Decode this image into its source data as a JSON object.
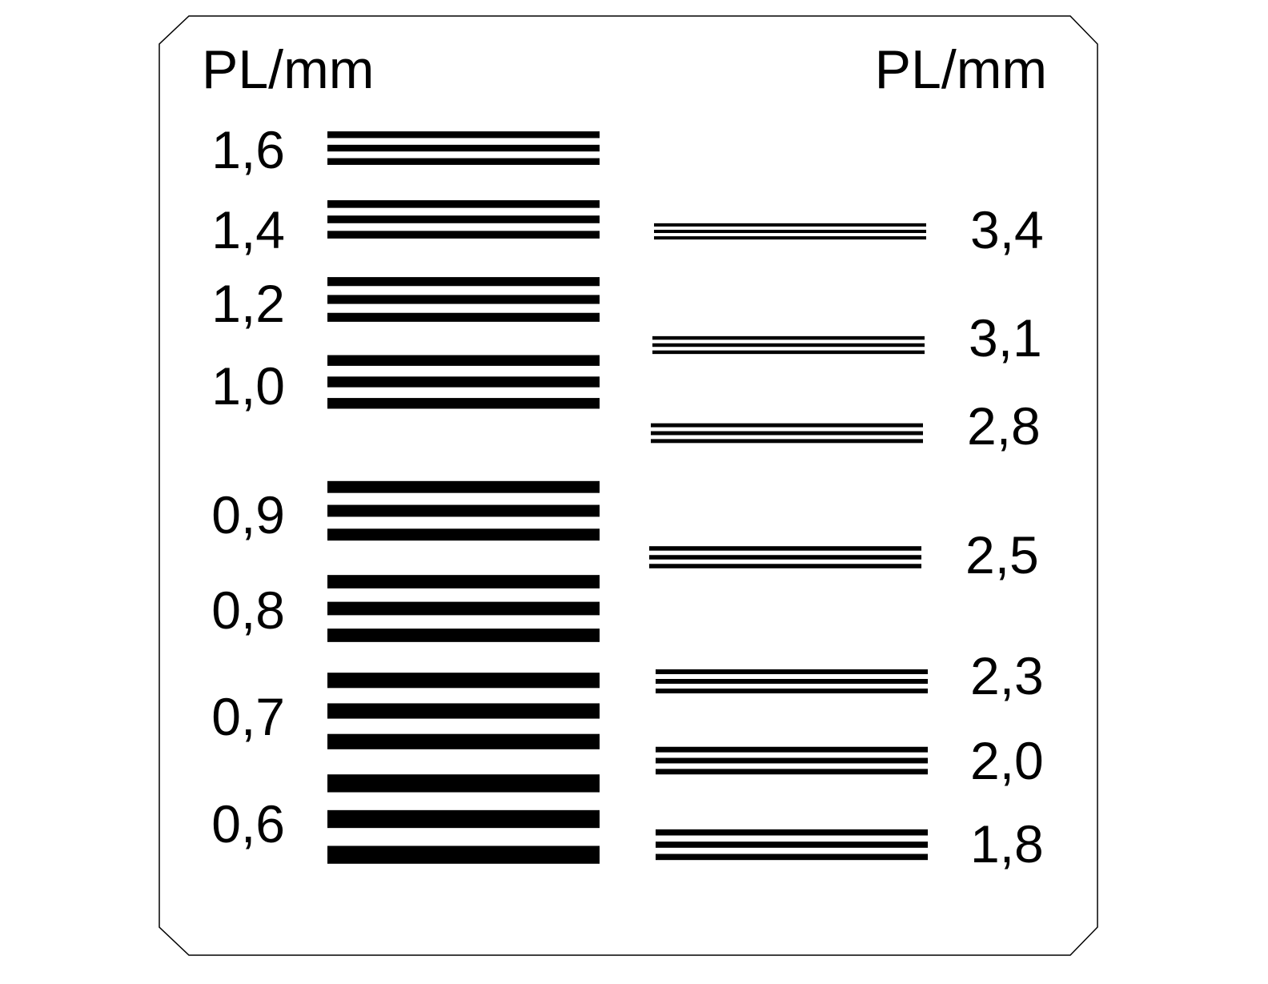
{
  "unit_label_left": "PL/mm",
  "unit_label_right": "PL/mm",
  "colors": {
    "ink": "#000000",
    "background": "#ffffff"
  },
  "left_groups": [
    {
      "label": "1,6",
      "pl_per_mm": 1.6
    },
    {
      "label": "1,4",
      "pl_per_mm": 1.4
    },
    {
      "label": "1,2",
      "pl_per_mm": 1.2
    },
    {
      "label": "1,0",
      "pl_per_mm": 1.0
    },
    {
      "label": "0,9",
      "pl_per_mm": 0.9
    },
    {
      "label": "0,8",
      "pl_per_mm": 0.8
    },
    {
      "label": "0,7",
      "pl_per_mm": 0.7
    },
    {
      "label": "0,6",
      "pl_per_mm": 0.6
    }
  ],
  "right_groups": [
    {
      "label": "3,4",
      "pl_per_mm": 3.4
    },
    {
      "label": "3,1",
      "pl_per_mm": 3.1
    },
    {
      "label": "2,8",
      "pl_per_mm": 2.8
    },
    {
      "label": "2,5",
      "pl_per_mm": 2.5
    },
    {
      "label": "2,3",
      "pl_per_mm": 2.3
    },
    {
      "label": "2,0",
      "pl_per_mm": 2.0
    },
    {
      "label": "1,8",
      "pl_per_mm": 1.8
    }
  ]
}
